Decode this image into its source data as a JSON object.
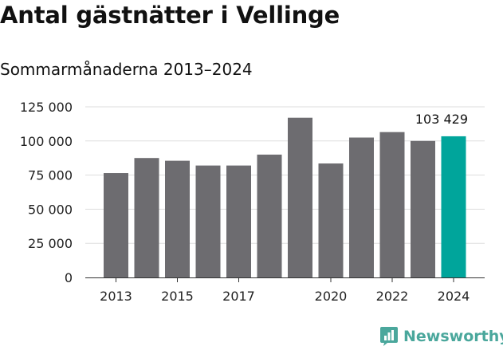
{
  "title": "Antal gästnätter i Vellinge",
  "subtitle": "Sommarmånaderna 2013–2024",
  "brand": {
    "name": "Newsworthy",
    "icon": "newsworthy-logo-icon"
  },
  "colors": {
    "bar": "#6d6c70",
    "highlight": "#00a59b",
    "grid": "#dddddd",
    "brand": "#4aa79c"
  },
  "chart_data": {
    "type": "bar",
    "categories": [
      "2013",
      "2014",
      "2015",
      "2016",
      "2017",
      "2018",
      "2019",
      "2020",
      "2021",
      "2022",
      "2023",
      "2024"
    ],
    "values": [
      76500,
      87500,
      85500,
      82000,
      82000,
      90000,
      117000,
      83500,
      102500,
      106500,
      100000,
      103429
    ],
    "x_tick_labels": [
      "2013",
      "2015",
      "2017",
      "2020",
      "2022",
      "2024"
    ],
    "y_ticks": [
      0,
      25000,
      50000,
      75000,
      100000,
      125000
    ],
    "y_tick_labels": [
      "0",
      "25 000",
      "50 000",
      "75 000",
      "100 000",
      "125 000"
    ],
    "ylim": [
      0,
      125000
    ],
    "highlight_index": 11,
    "annotation": {
      "index": 11,
      "text": "103 429"
    },
    "grid": true,
    "xlabel": "",
    "ylabel": ""
  }
}
